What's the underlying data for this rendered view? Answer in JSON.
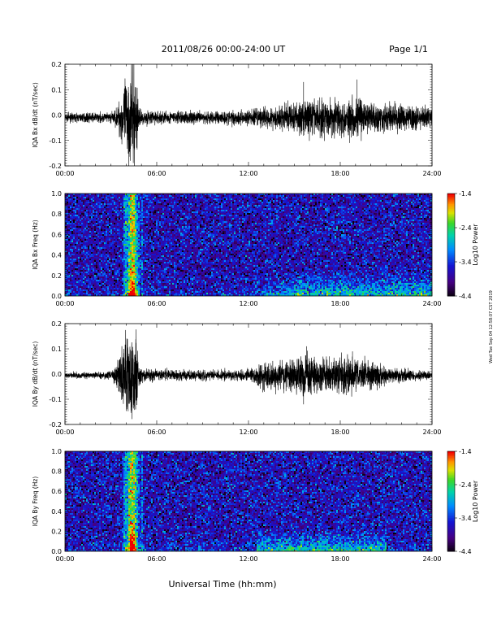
{
  "header": {
    "date_range": "2011/08/26  00:00-24:00 UT",
    "page": "Page 1/1"
  },
  "xlabel": "Universal Time (hh:mm)",
  "side_note": "Wed Tue Sep 04 12:58:07 CST 2019",
  "chart_data": [
    {
      "type": "line",
      "ylabel": "IQA Bx dB/dt (nT/sec)",
      "xlim": [
        0,
        24
      ],
      "ylim": [
        -0.2,
        0.2
      ],
      "x_ticks": [
        "00:00",
        "06:00",
        "12:00",
        "18:00",
        "24:00"
      ],
      "y_ticks": [
        "0.2",
        "0.1",
        "0.0",
        "-0.1",
        "-0.2"
      ],
      "baseline": -0.01,
      "envelope": [
        [
          0,
          0.02
        ],
        [
          3,
          0.025
        ],
        [
          3.4,
          0.05
        ],
        [
          4.0,
          0.2
        ],
        [
          4.3,
          0.25
        ],
        [
          4.7,
          0.25
        ],
        [
          4.8,
          0.05
        ],
        [
          5,
          0.035
        ],
        [
          9,
          0.03
        ],
        [
          12,
          0.04
        ],
        [
          14,
          0.06
        ],
        [
          15.5,
          0.09
        ],
        [
          16.5,
          0.09
        ],
        [
          18,
          0.09
        ],
        [
          19,
          0.1
        ],
        [
          20,
          0.08
        ],
        [
          24,
          0.05
        ]
      ],
      "spikes": [
        {
          "x": 15.6,
          "y": 0.13
        },
        {
          "x": 19.1,
          "y": 0.14
        },
        {
          "x": 18.6,
          "y": -0.11
        }
      ]
    },
    {
      "type": "heatmap",
      "ylabel": "IQA Bx Freq (Hz)",
      "xlim": [
        0,
        24
      ],
      "ylim": [
        0,
        1.0
      ],
      "x_ticks": [
        "00:00",
        "06:00",
        "12:00",
        "18:00",
        "24:00"
      ],
      "y_ticks": [
        "1.0",
        "0.8",
        "0.6",
        "0.4",
        "0.2",
        "0.0"
      ],
      "colorbar": {
        "label": "Log10 Power",
        "ticks": [
          "-1.4",
          "-2.4",
          "-3.4",
          "-4.4"
        ],
        "range": [
          -4.4,
          -1.4
        ]
      },
      "features": {
        "event_time": 4.35,
        "event_width": 0.35,
        "band_start": 12.0,
        "band_top": 0.25
      }
    },
    {
      "type": "line",
      "ylabel": "IQA By dB/dt (nT/sec)",
      "xlim": [
        0,
        24
      ],
      "ylim": [
        -0.2,
        0.2
      ],
      "x_ticks": [
        "00:00",
        "06:00",
        "12:00",
        "18:00",
        "24:00"
      ],
      "y_ticks": [
        "0.2",
        "0.1",
        "0.0",
        "-0.1",
        "-0.2"
      ],
      "baseline": -0.005,
      "envelope": [
        [
          0,
          0.015
        ],
        [
          3,
          0.02
        ],
        [
          3.3,
          0.05
        ],
        [
          4.0,
          0.2
        ],
        [
          4.3,
          0.25
        ],
        [
          4.7,
          0.25
        ],
        [
          4.8,
          0.06
        ],
        [
          5,
          0.03
        ],
        [
          9,
          0.025
        ],
        [
          12,
          0.03
        ],
        [
          13,
          0.06
        ],
        [
          14.5,
          0.08
        ],
        [
          16,
          0.1
        ],
        [
          17,
          0.08
        ],
        [
          19,
          0.09
        ],
        [
          20,
          0.07
        ],
        [
          21,
          0.04
        ],
        [
          24,
          0.02
        ]
      ],
      "spikes": [
        {
          "x": 15.8,
          "y": 0.11
        },
        {
          "x": 15.6,
          "y": -0.12
        },
        {
          "x": 18.8,
          "y": 0.09
        }
      ]
    },
    {
      "type": "heatmap",
      "ylabel": "IQA By Freq (Hz)",
      "xlim": [
        0,
        24
      ],
      "ylim": [
        0,
        1.0
      ],
      "x_ticks": [
        "00:00",
        "06:00",
        "12:00",
        "18:00",
        "24:00"
      ],
      "y_ticks": [
        "1.0",
        "0.8",
        "0.6",
        "0.4",
        "0.2",
        "0.0"
      ],
      "colorbar": {
        "label": "Log10 Power",
        "ticks": [
          "-1.4",
          "-2.4",
          "-3.4",
          "-4.4"
        ],
        "range": [
          -4.4,
          -1.4
        ]
      },
      "features": {
        "event_time": 4.35,
        "event_width": 0.35,
        "band_start": 12.5,
        "band_end": 21.0,
        "band_top": 0.22
      }
    }
  ]
}
